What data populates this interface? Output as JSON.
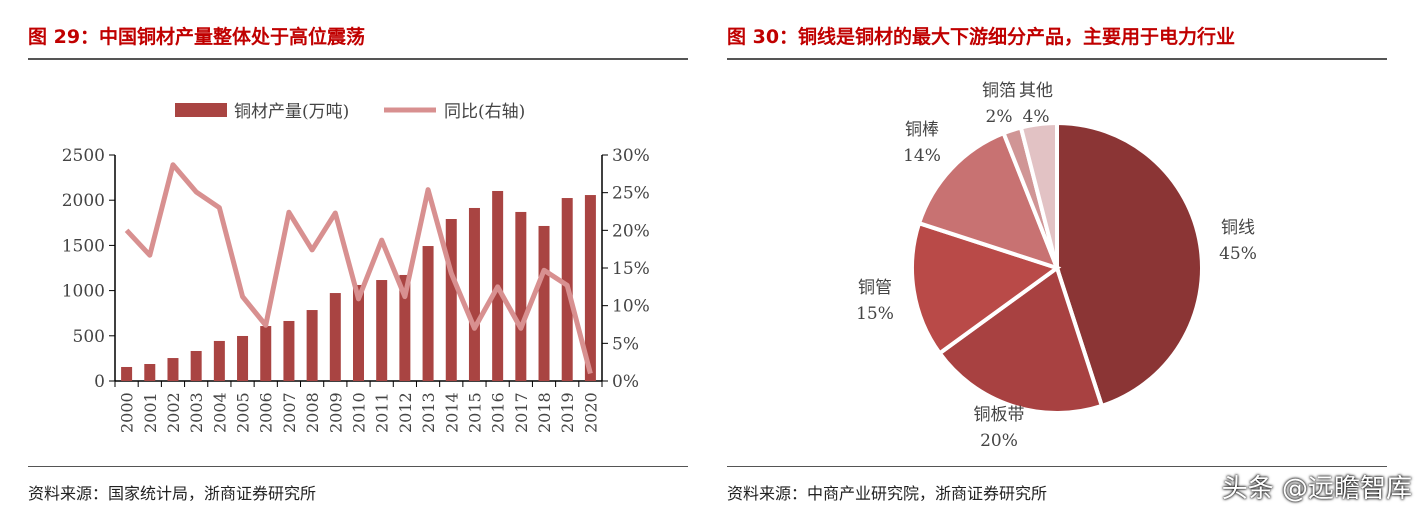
{
  "left": {
    "title": "图 29：中国铜材产量整体处于高位震荡",
    "source": "资料来源：国家统计局，浙商证券研究所"
  },
  "right": {
    "title": "图 30：铜线是铜材的最大下游细分产品，主要用于电力行业",
    "source": "资料来源：中商产业研究院，浙商证券研究所"
  },
  "watermark": "头条 @远瞻智库",
  "chart_data": [
    {
      "type": "bar+line",
      "categories": [
        "2000",
        "2001",
        "2002",
        "2003",
        "2004",
        "2005",
        "2006",
        "2007",
        "2008",
        "2009",
        "2010",
        "2011",
        "2012",
        "2013",
        "2014",
        "2015",
        "2016",
        "2017",
        "2018",
        "2019",
        "2020"
      ],
      "series": [
        {
          "name": "铜材产量(万吨)",
          "type": "bar",
          "axis": "left",
          "color": "#a94442",
          "values": [
            155,
            188,
            254,
            332,
            443,
            498,
            608,
            664,
            785,
            973,
            1062,
            1117,
            1173,
            1493,
            1792,
            1914,
            2102,
            1870,
            1715,
            2024,
            2057
          ]
        },
        {
          "name": "同比(右轴)",
          "type": "line",
          "axis": "right",
          "color": "#d89090",
          "values": [
            20.0,
            16.7,
            28.7,
            25.1,
            23.0,
            11.2,
            7.4,
            22.4,
            17.4,
            22.3,
            10.9,
            18.7,
            11.2,
            25.4,
            14.3,
            7.0,
            12.5,
            7.0,
            14.7,
            12.7,
            1.0
          ]
        }
      ],
      "yleft": {
        "ylim": [
          0,
          2500
        ],
        "ticks": [
          "0",
          "500",
          "1000",
          "1500",
          "2000",
          "2500"
        ]
      },
      "yright": {
        "ylim": [
          0,
          30
        ],
        "ticks": [
          "0%",
          "5%",
          "10%",
          "15%",
          "20%",
          "25%",
          "30%"
        ]
      },
      "legend": "top",
      "grid": false
    },
    {
      "type": "pie",
      "slices": [
        {
          "label": "铜线",
          "value": 45,
          "text": "45%",
          "color": "#8b3535"
        },
        {
          "label": "铜板带",
          "value": 20,
          "text": "20%",
          "color": "#a84141"
        },
        {
          "label": "铜管",
          "value": 15,
          "text": "15%",
          "color": "#b94a48"
        },
        {
          "label": "铜棒",
          "value": 14,
          "text": "14%",
          "color": "#c87272"
        },
        {
          "label": "铜箔",
          "value": 2,
          "text": "2%",
          "color": "#d09595"
        },
        {
          "label": "其他",
          "value": 4,
          "text": "4%",
          "color": "#e2c2c4"
        }
      ]
    }
  ]
}
